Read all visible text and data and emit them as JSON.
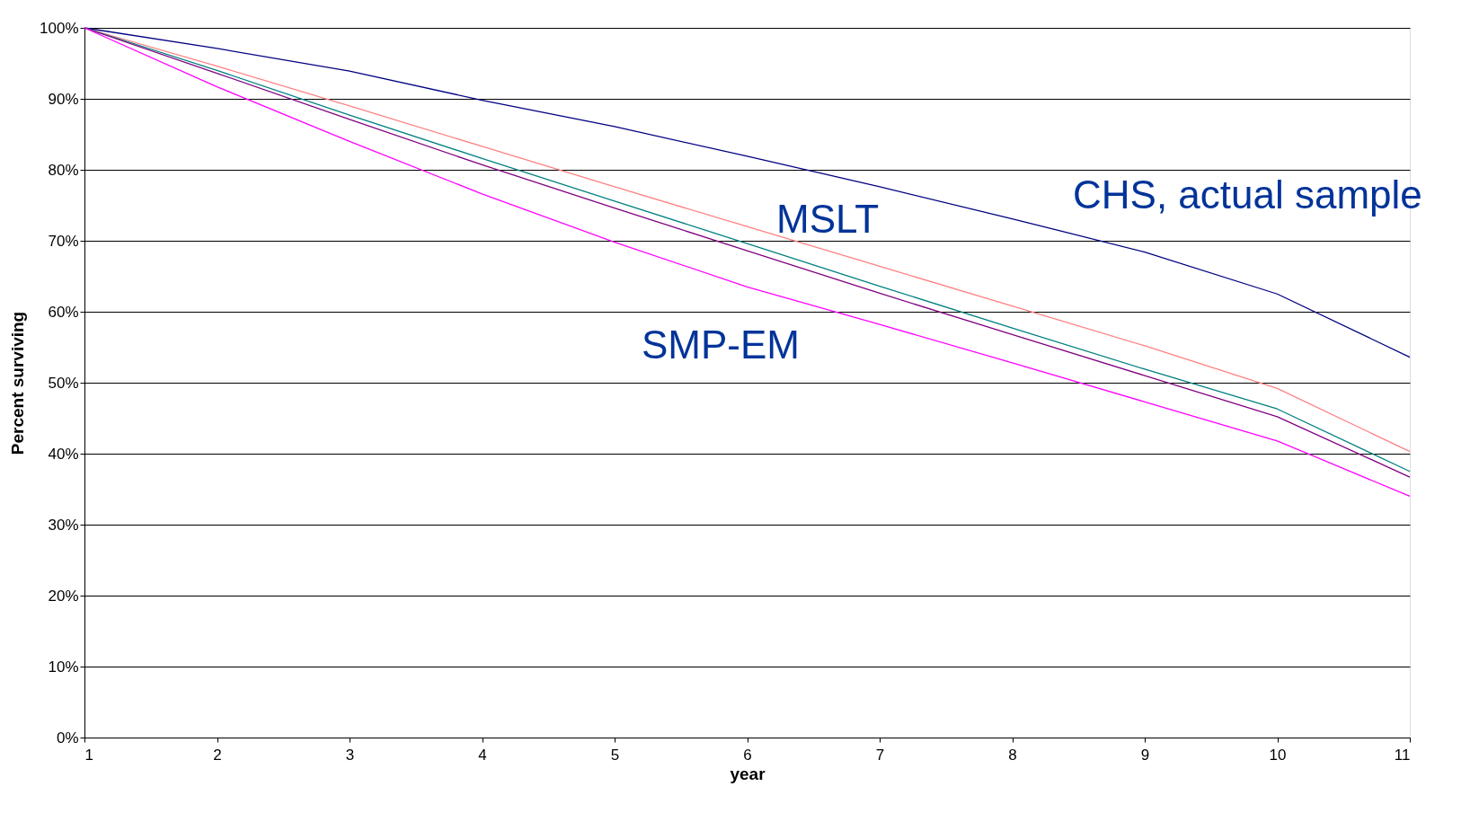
{
  "chart_data": {
    "type": "line",
    "xlabel": "year",
    "ylabel": "Percent surviving",
    "x": [
      1,
      2,
      3,
      4,
      5,
      6,
      7,
      8,
      9,
      10,
      11
    ],
    "series": [
      {
        "name": "CHS, actual sample",
        "color": "#000080",
        "values": [
          100,
          97.1,
          93.9,
          89.8,
          86.1,
          81.9,
          77.6,
          73.1,
          68.4,
          62.5,
          53.6
        ]
      },
      {
        "color": "#ff8080",
        "values": [
          100,
          94.6,
          89.0,
          83.3,
          77.6,
          72.0,
          66.4,
          60.8,
          55.2,
          49.2,
          40.3
        ]
      },
      {
        "color": "#008080",
        "values": [
          100,
          94.0,
          87.7,
          81.6,
          75.6,
          69.6,
          63.6,
          57.7,
          51.9,
          46.3,
          37.5
        ]
      },
      {
        "color": "#800080",
        "values": [
          100,
          93.6,
          87.1,
          80.7,
          74.6,
          68.6,
          62.6,
          56.8,
          51.0,
          45.2,
          36.7
        ]
      },
      {
        "name": "SMP-EM",
        "color": "#ff00ff",
        "values": [
          100,
          91.7,
          84.0,
          76.6,
          69.8,
          63.5,
          58.2,
          52.8,
          47.3,
          41.8,
          34.0
        ]
      }
    ],
    "annotations": [
      "MSLT"
    ],
    "xlim": [
      1,
      11
    ],
    "xticks": [
      1,
      2,
      3,
      4,
      5,
      6,
      7,
      8,
      9,
      10,
      11
    ],
    "ylim": [
      0,
      100
    ],
    "yticks": [
      {
        "value": 0,
        "label": "0%"
      },
      {
        "value": 10,
        "label": "10%"
      },
      {
        "value": 20,
        "label": "20%"
      },
      {
        "value": 30,
        "label": "30%"
      },
      {
        "value": 40,
        "label": "40%"
      },
      {
        "value": 50,
        "label": "50%"
      },
      {
        "value": 60,
        "label": "60%"
      },
      {
        "value": 70,
        "label": "70%"
      },
      {
        "value": 80,
        "label": "80%"
      },
      {
        "value": 90,
        "label": "90%"
      },
      {
        "value": 100,
        "label": "100%"
      }
    ],
    "grid": "y",
    "marker": "none",
    "line_style": "solid"
  }
}
